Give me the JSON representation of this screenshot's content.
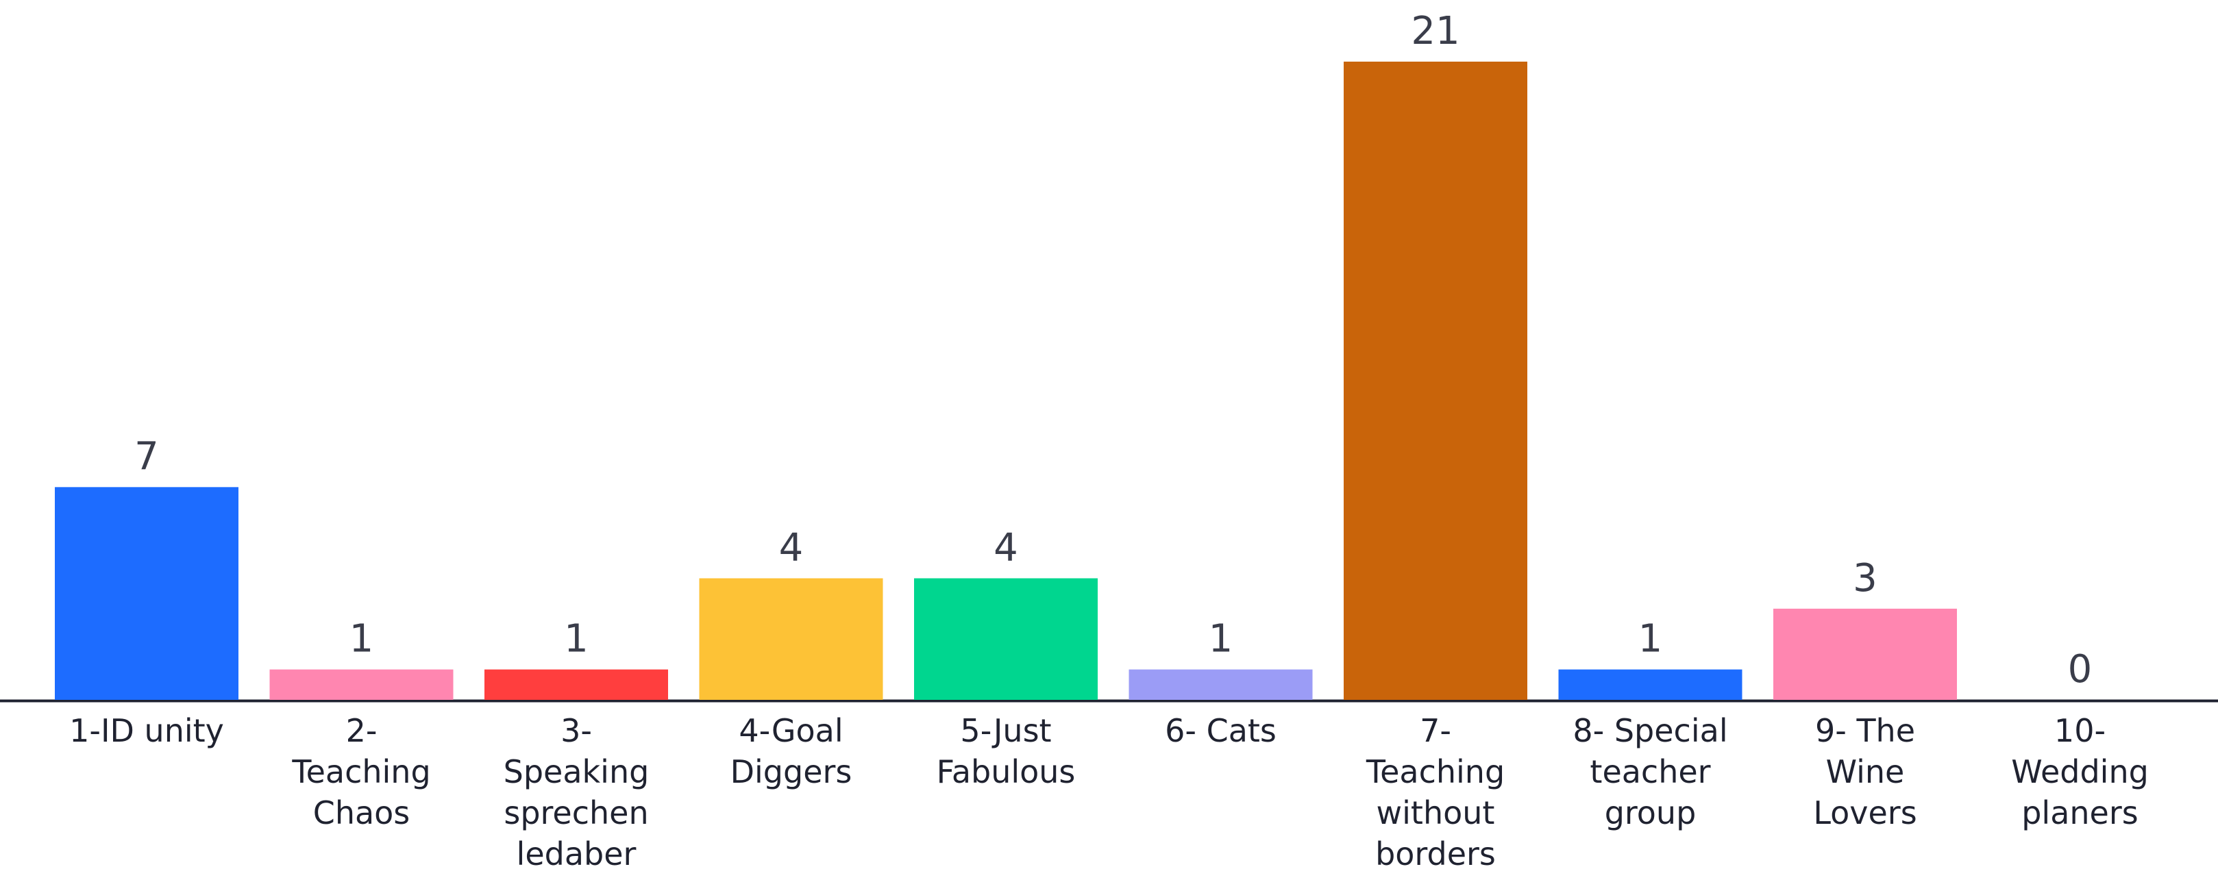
{
  "chart_data": {
    "type": "bar",
    "categories": [
      [
        "1-ID unity"
      ],
      [
        "2-",
        "Teaching",
        "Chaos"
      ],
      [
        "3-",
        "Speaking",
        "sprechen",
        "ledaber"
      ],
      [
        "4-Goal",
        "Diggers"
      ],
      [
        "5-Just",
        "Fabulous"
      ],
      [
        "6- Cats"
      ],
      [
        "7-",
        "Teaching",
        "without",
        "borders"
      ],
      [
        "8- Special",
        "teacher",
        "group"
      ],
      [
        "9- The",
        "Wine",
        "Lovers"
      ],
      [
        "10-",
        "Wedding",
        "planers"
      ]
    ],
    "values": [
      7,
      1,
      1,
      4,
      4,
      1,
      21,
      1,
      3,
      0
    ],
    "colors": [
      "#1d6cff",
      "#ff86b0",
      "#ff3e3e",
      "#fdc236",
      "#00d68f",
      "#9b9cf6",
      "#c9640a",
      "#1d6cff",
      "#ff86b0",
      "#cccccc"
    ],
    "title": "",
    "xlabel": "",
    "ylabel": "",
    "ylim": [
      0,
      21
    ],
    "grid": false,
    "legend": "none",
    "value_labels": true,
    "axis_color": "#1f2230"
  }
}
